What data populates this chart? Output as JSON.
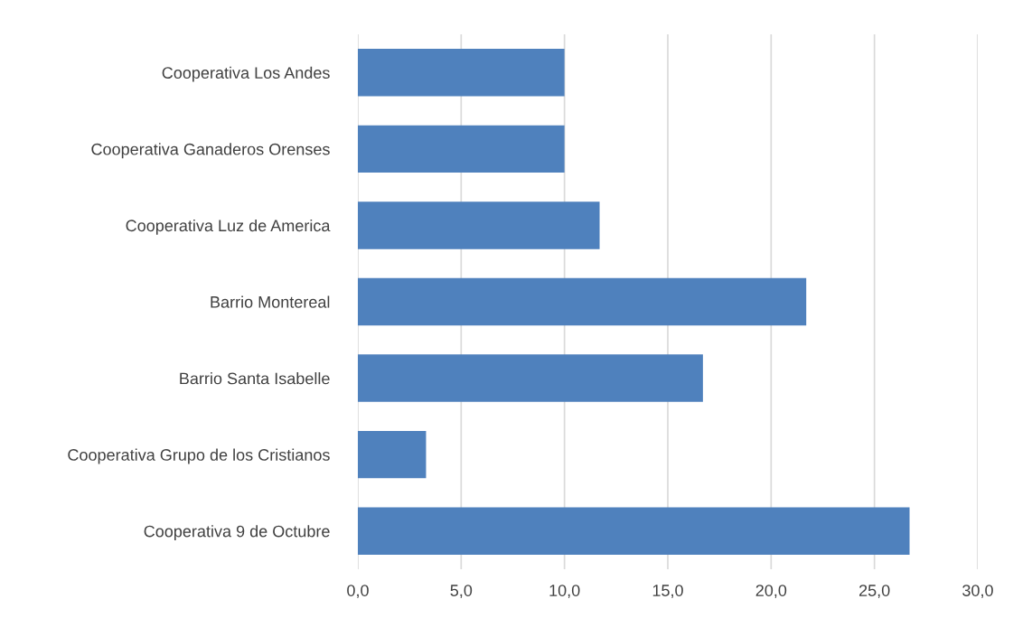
{
  "chart_data": {
    "type": "bar",
    "orientation": "horizontal",
    "categories": [
      "Cooperativa Los Andes",
      "Cooperativa Ganaderos Orenses",
      "Cooperativa Luz de America",
      "Barrio Montereal",
      "Barrio Santa Isabelle",
      "Cooperativa Grupo de los Cristianos",
      "Cooperativa 9 de Octubre"
    ],
    "values": [
      10.0,
      10.0,
      11.7,
      21.7,
      16.7,
      3.3,
      26.7
    ],
    "color": "#4f81bd",
    "xlim": [
      0,
      30
    ],
    "xticks": [
      {
        "value": 0,
        "label": "0,0"
      },
      {
        "value": 5,
        "label": "5,0"
      },
      {
        "value": 10,
        "label": "10,0"
      },
      {
        "value": 15,
        "label": "15,0"
      },
      {
        "value": 20,
        "label": "20,0"
      },
      {
        "value": 25,
        "label": "25,0"
      },
      {
        "value": 30,
        "label": "30,0"
      }
    ],
    "grid": "x"
  }
}
